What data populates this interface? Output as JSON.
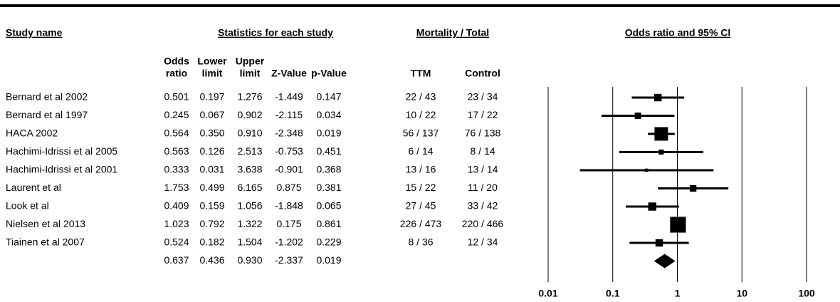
{
  "chart_data": {
    "type": "forest",
    "groups": [
      "Study name",
      "Statistics for each study",
      "Mortality / Total",
      "Odds ratio and 95% CI"
    ],
    "columns": [
      [
        "Odds",
        "ratio"
      ],
      [
        "Lower",
        "limit"
      ],
      [
        "Upper",
        "limit"
      ],
      [
        "Z-Value"
      ],
      [
        "p-Value"
      ],
      [
        "TTM"
      ],
      [
        "Control"
      ]
    ],
    "studies": [
      {
        "name": "Bernard et al 2002",
        "values": [
          0.501,
          0.197,
          1.276,
          -1.449,
          0.147
        ],
        "value_labels": [
          "0.501",
          "0.197",
          "1.276",
          "-1.449",
          "0.147"
        ],
        "ttm": "22 / 43",
        "control": "23 / 34",
        "weight": 7.5
      },
      {
        "name": "Bernard et al 1997",
        "values": [
          0.245,
          0.067,
          0.902,
          -2.115,
          0.034
        ],
        "value_labels": [
          "0.245",
          "0.067",
          "0.902",
          "-2.115",
          "0.034"
        ],
        "ttm": "10 / 22",
        "control": "17 / 22",
        "weight": 5.5
      },
      {
        "name": "HACA 2002",
        "values": [
          0.564,
          0.35,
          0.91,
          -2.348,
          0.019
        ],
        "value_labels": [
          "0.564",
          "0.350",
          "0.910",
          "-2.348",
          "0.019"
        ],
        "ttm": "56 / 137",
        "control": "76 / 138",
        "weight": 25
      },
      {
        "name": "Hachimi-Idrissi et al 2005",
        "values": [
          0.563,
          0.126,
          2.513,
          -0.753,
          0.451
        ],
        "value_labels": [
          "0.563",
          "0.126",
          "2.513",
          "-0.753",
          "0.451"
        ],
        "ttm": "6 / 14",
        "control": "8 / 14",
        "weight": 3.5
      },
      {
        "name": "Hachimi-Idrissi et al 2001",
        "values": [
          0.333,
          0.031,
          3.638,
          -0.901,
          0.368
        ],
        "value_labels": [
          "0.333",
          "0.031",
          "3.638",
          "-0.901",
          "0.368"
        ],
        "ttm": "13 / 16",
        "control": "13 / 14",
        "weight": 1.5
      },
      {
        "name": "Laurent et al",
        "values": [
          1.753,
          0.499,
          6.165,
          0.875,
          0.381
        ],
        "value_labels": [
          "1.753",
          "0.499",
          "6.165",
          "0.875",
          "0.381"
        ],
        "ttm": "15 / 22",
        "control": "11 / 20",
        "weight": 6
      },
      {
        "name": "Look et al",
        "values": [
          0.409,
          0.159,
          1.056,
          -1.848,
          0.065
        ],
        "value_labels": [
          "0.409",
          "0.159",
          "1.056",
          "-1.848",
          "0.065"
        ],
        "ttm": "27 / 45",
        "control": "33 / 42",
        "weight": 9
      },
      {
        "name": "Nielsen et al 2013",
        "values": [
          1.023,
          0.792,
          1.322,
          0.175,
          0.861
        ],
        "value_labels": [
          "1.023",
          "0.792",
          "1.322",
          "0.175",
          "0.861"
        ],
        "ttm": "226 / 473",
        "control": "220 / 466",
        "weight": 34
      },
      {
        "name": "Tiainen et al 2007",
        "values": [
          0.524,
          0.182,
          1.504,
          -1.202,
          0.229
        ],
        "value_labels": [
          "0.524",
          "0.182",
          "1.504",
          "-1.202",
          "0.229"
        ],
        "ttm": "8 / 36",
        "control": "12 / 34",
        "weight": 7.5
      }
    ],
    "summary": {
      "values": [
        0.637,
        0.436,
        0.93,
        -2.337,
        0.019
      ],
      "value_labels": [
        "0.637",
        "0.436",
        "0.930",
        "-2.337",
        "0.019"
      ]
    },
    "xscale": "log",
    "xlim": [
      0.01,
      100
    ],
    "xticks": [
      0.01,
      0.1,
      1,
      10,
      100
    ],
    "color": "#000000"
  }
}
